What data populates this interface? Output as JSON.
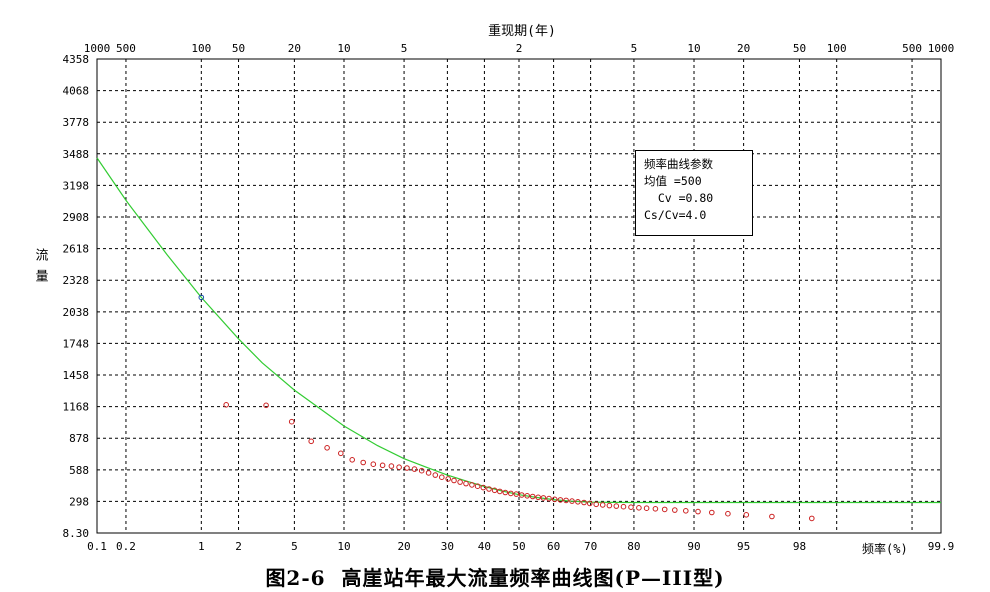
{
  "chart_data": {
    "type": "scatter",
    "title": "重现期(年)",
    "ylabel": "流  量",
    "xlabel": "频率(%)",
    "x_scale": "normal-probability",
    "xlim": [
      0.1,
      99.9
    ],
    "ylim": [
      8.3,
      4358
    ],
    "grid": true,
    "x_ticks_bottom": [
      "0.1",
      "0.2",
      "1",
      "2",
      "5",
      "10",
      "20",
      "30",
      "40",
      "50",
      "60",
      "70",
      "80",
      "90",
      "95",
      "98",
      "99.9"
    ],
    "x_ticks_top": [
      {
        "p": 0.1,
        "label": "1000"
      },
      {
        "p": 0.2,
        "label": "500"
      },
      {
        "p": 1,
        "label": "100"
      },
      {
        "p": 2,
        "label": "50"
      },
      {
        "p": 5,
        "label": "20"
      },
      {
        "p": 10,
        "label": "10"
      },
      {
        "p": 20,
        "label": "5"
      },
      {
        "p": 50,
        "label": "2"
      },
      {
        "p": 80,
        "label": "5"
      },
      {
        "p": 90,
        "label": "10"
      },
      {
        "p": 95,
        "label": "20"
      },
      {
        "p": 98,
        "label": "50"
      },
      {
        "p": 99,
        "label": "100"
      },
      {
        "p": 99.8,
        "label": "500"
      },
      {
        "p": 99.9,
        "label": "1000"
      }
    ],
    "y_ticks": [
      "8.30",
      "298",
      "588",
      "878",
      "1168",
      "1458",
      "1748",
      "2038",
      "2328",
      "2618",
      "2908",
      "3198",
      "3488",
      "3778",
      "4068",
      "4358"
    ],
    "series": [
      {
        "kind": "line",
        "color": "#33cc33",
        "points": [
          {
            "p": 0.1,
            "y": 3450
          },
          {
            "p": 0.2,
            "y": 3060
          },
          {
            "p": 0.5,
            "y": 2560
          },
          {
            "p": 1,
            "y": 2170
          },
          {
            "p": 2,
            "y": 1790
          },
          {
            "p": 3,
            "y": 1570
          },
          {
            "p": 5,
            "y": 1320
          },
          {
            "p": 10,
            "y": 990
          },
          {
            "p": 15,
            "y": 810
          },
          {
            "p": 20,
            "y": 690
          },
          {
            "p": 25,
            "y": 610
          },
          {
            "p": 30,
            "y": 540
          },
          {
            "p": 35,
            "y": 485
          },
          {
            "p": 40,
            "y": 435
          },
          {
            "p": 45,
            "y": 395
          },
          {
            "p": 50,
            "y": 360
          },
          {
            "p": 55,
            "y": 335
          },
          {
            "p": 60,
            "y": 315
          },
          {
            "p": 65,
            "y": 300
          },
          {
            "p": 70,
            "y": 292
          },
          {
            "p": 75,
            "y": 289
          },
          {
            "p": 80,
            "y": 288
          },
          {
            "p": 90,
            "y": 288
          },
          {
            "p": 95,
            "y": 288
          },
          {
            "p": 99,
            "y": 288
          },
          {
            "p": 99.9,
            "y": 288
          }
        ]
      },
      {
        "kind": "points",
        "color": "#cc2222",
        "points": [
          {
            "p": 1.0,
            "y": 2170
          },
          {
            "p": 1.6,
            "y": 1185
          },
          {
            "p": 3.2,
            "y": 1180
          },
          {
            "p": 4.8,
            "y": 1030
          },
          {
            "p": 6.4,
            "y": 850
          },
          {
            "p": 8.0,
            "y": 790
          },
          {
            "p": 9.6,
            "y": 740
          },
          {
            "p": 11.1,
            "y": 680
          },
          {
            "p": 12.7,
            "y": 655
          },
          {
            "p": 14.3,
            "y": 640
          },
          {
            "p": 15.9,
            "y": 630
          },
          {
            "p": 17.5,
            "y": 622
          },
          {
            "p": 19.0,
            "y": 612
          },
          {
            "p": 20.6,
            "y": 605
          },
          {
            "p": 22.2,
            "y": 595
          },
          {
            "p": 23.8,
            "y": 580
          },
          {
            "p": 25.4,
            "y": 560
          },
          {
            "p": 27.0,
            "y": 540
          },
          {
            "p": 28.6,
            "y": 520
          },
          {
            "p": 30.2,
            "y": 505
          },
          {
            "p": 31.7,
            "y": 490
          },
          {
            "p": 33.3,
            "y": 475
          },
          {
            "p": 34.9,
            "y": 462
          },
          {
            "p": 36.5,
            "y": 450
          },
          {
            "p": 38.1,
            "y": 438
          },
          {
            "p": 39.7,
            "y": 425
          },
          {
            "p": 41.3,
            "y": 412
          },
          {
            "p": 42.9,
            "y": 400
          },
          {
            "p": 44.4,
            "y": 390
          },
          {
            "p": 46.0,
            "y": 380
          },
          {
            "p": 47.6,
            "y": 372
          },
          {
            "p": 49.2,
            "y": 365
          },
          {
            "p": 50.8,
            "y": 357
          },
          {
            "p": 52.4,
            "y": 350
          },
          {
            "p": 54.0,
            "y": 343
          },
          {
            "p": 55.6,
            "y": 336
          },
          {
            "p": 57.1,
            "y": 330
          },
          {
            "p": 58.7,
            "y": 324
          },
          {
            "p": 60.3,
            "y": 318
          },
          {
            "p": 61.9,
            "y": 312
          },
          {
            "p": 63.5,
            "y": 307
          },
          {
            "p": 65.1,
            "y": 301
          },
          {
            "p": 66.7,
            "y": 295
          },
          {
            "p": 68.3,
            "y": 288
          },
          {
            "p": 69.8,
            "y": 280
          },
          {
            "p": 71.4,
            "y": 272
          },
          {
            "p": 73.0,
            "y": 266
          },
          {
            "p": 74.6,
            "y": 260
          },
          {
            "p": 76.2,
            "y": 255
          },
          {
            "p": 77.8,
            "y": 250
          },
          {
            "p": 79.4,
            "y": 245
          },
          {
            "p": 81.0,
            "y": 240
          },
          {
            "p": 82.5,
            "y": 236
          },
          {
            "p": 84.1,
            "y": 230
          },
          {
            "p": 85.7,
            "y": 225
          },
          {
            "p": 87.3,
            "y": 218
          },
          {
            "p": 88.9,
            "y": 212
          },
          {
            "p": 90.5,
            "y": 205
          },
          {
            "p": 92.1,
            "y": 196
          },
          {
            "p": 93.7,
            "y": 185
          },
          {
            "p": 95.2,
            "y": 175
          },
          {
            "p": 96.8,
            "y": 160
          },
          {
            "p": 98.4,
            "y": 142
          }
        ]
      }
    ]
  },
  "params": {
    "title": "频率曲线参数",
    "mean": "均值 =500",
    "cv": "  Cv =0.80",
    "cscv": "Cs/Cv=4.0"
  },
  "caption": {
    "figure_no": "图2-6",
    "text": "高崖站年最大流量频率曲线图(P—III型)"
  }
}
